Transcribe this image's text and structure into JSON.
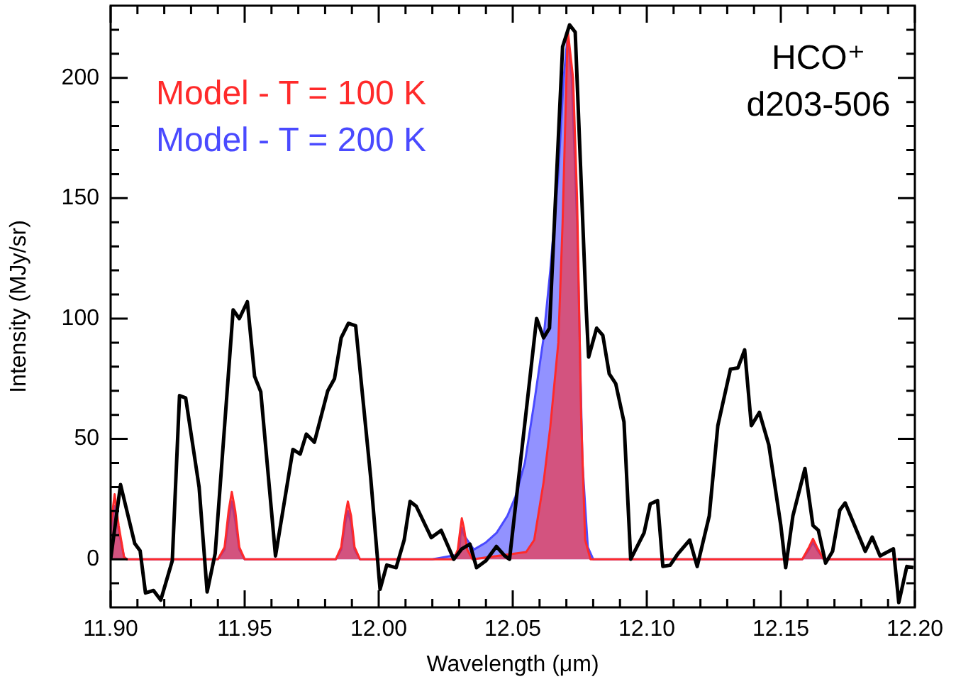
{
  "chart_data": {
    "type": "line",
    "xlabel": "Wavelength (μm)",
    "ylabel": "Intensity (MJy/sr)",
    "annotations": [
      "HCO⁺",
      "d203-506"
    ],
    "xlim": [
      11.9,
      12.2
    ],
    "xticks": [
      {
        "value": 11.9,
        "label": "11.90"
      },
      {
        "value": 11.91,
        "label": null
      },
      {
        "value": 11.92,
        "label": null
      },
      {
        "value": 11.93,
        "label": null
      },
      {
        "value": 11.94,
        "label": null
      },
      {
        "value": 11.95,
        "label": "11.95"
      },
      {
        "value": 11.96,
        "label": null
      },
      {
        "value": 11.97,
        "label": null
      },
      {
        "value": 11.98,
        "label": null
      },
      {
        "value": 11.99,
        "label": null
      },
      {
        "value": 12.0,
        "label": "12.00"
      },
      {
        "value": 12.01,
        "label": null
      },
      {
        "value": 12.02,
        "label": null
      },
      {
        "value": 12.03,
        "label": null
      },
      {
        "value": 12.04,
        "label": null
      },
      {
        "value": 12.05,
        "label": "12.05"
      },
      {
        "value": 12.06,
        "label": null
      },
      {
        "value": 12.07,
        "label": null
      },
      {
        "value": 12.08,
        "label": null
      },
      {
        "value": 12.09,
        "label": null
      },
      {
        "value": 12.1,
        "label": "12.10"
      },
      {
        "value": 12.11,
        "label": null
      },
      {
        "value": 12.12,
        "label": null
      },
      {
        "value": 12.13,
        "label": null
      },
      {
        "value": 12.14,
        "label": null
      },
      {
        "value": 12.15,
        "label": "12.15"
      },
      {
        "value": 12.16,
        "label": null
      },
      {
        "value": 12.17,
        "label": null
      },
      {
        "value": 12.18,
        "label": null
      },
      {
        "value": 12.19,
        "label": null
      },
      {
        "value": 12.2,
        "label": "12.20"
      }
    ],
    "ylim": [
      -20,
      230
    ],
    "yticks": [
      {
        "value": -10,
        "label": null
      },
      0,
      {
        "value": 10,
        "label": null
      },
      {
        "value": 20,
        "label": null
      },
      {
        "value": 30,
        "label": null
      },
      {
        "value": 40,
        "label": null
      },
      50,
      {
        "value": 60,
        "label": null
      },
      {
        "value": 70,
        "label": null
      },
      {
        "value": 80,
        "label": null
      },
      {
        "value": 90,
        "label": null
      },
      100,
      {
        "value": 110,
        "label": null
      },
      {
        "value": 120,
        "label": null
      },
      {
        "value": 130,
        "label": null
      },
      {
        "value": 140,
        "label": null
      },
      150,
      {
        "value": 160,
        "label": null
      },
      {
        "value": 170,
        "label": null
      },
      {
        "value": 180,
        "label": null
      },
      {
        "value": 190,
        "label": null
      },
      200,
      {
        "value": 210,
        "label": null
      },
      {
        "value": 220,
        "label": null
      }
    ],
    "grid": false,
    "legend": "top left",
    "marker": "none",
    "line_style": "solid",
    "series": [
      {
        "name": "Model - T = 100 K",
        "type": "area",
        "color": "#ff2a2a",
        "x": [
          11.9,
          11.9015,
          11.903,
          11.905,
          11.906,
          11.94,
          11.9425,
          11.944,
          11.9452,
          11.9465,
          11.948,
          11.95,
          11.984,
          11.986,
          11.9875,
          11.9885,
          11.9897,
          11.991,
          11.993,
          12.028,
          12.0295,
          12.0305,
          12.031,
          12.0318,
          12.033,
          12.035,
          12.055,
          12.058,
          12.0615,
          12.064,
          12.067,
          12.0686,
          12.0705,
          12.0725,
          12.074,
          12.0755,
          12.077,
          12.079,
          12.158,
          12.1605,
          12.162,
          12.1635,
          12.166,
          12.2
        ],
        "values": [
          14,
          27,
          14,
          1,
          0,
          0,
          5,
          20,
          28,
          20,
          5,
          0,
          0,
          5,
          18,
          24,
          18,
          5,
          0,
          0,
          4,
          13,
          17,
          13,
          4,
          0,
          3,
          8,
          32,
          55,
          90,
          140,
          220,
          200,
          150,
          60,
          8,
          0,
          0,
          5,
          8.5,
          5,
          0,
          0
        ]
      },
      {
        "name": "Model - T = 200 K",
        "type": "area",
        "color": "#4a4aff",
        "x": [
          11.9,
          11.9015,
          11.903,
          11.905,
          11.906,
          11.94,
          11.9425,
          11.944,
          11.9452,
          11.9465,
          11.948,
          11.95,
          11.984,
          11.986,
          11.9875,
          11.9885,
          11.9897,
          11.991,
          11.993,
          12.02,
          12.03,
          12.0305,
          12.031,
          12.0318,
          12.0355,
          12.04,
          12.044,
          12.048,
          12.051,
          12.0545,
          12.058,
          12.0615,
          12.064,
          12.067,
          12.069,
          12.0705,
          12.072,
          12.074,
          12.076,
          12.078,
          12.08,
          12.158,
          12.1605,
          12.162,
          12.1635,
          12.166,
          12.2
        ],
        "values": [
          12,
          22,
          12,
          1,
          0,
          0,
          4,
          16,
          24,
          16,
          4,
          0,
          0,
          4,
          15,
          20,
          15,
          4,
          0,
          0,
          2,
          10,
          13,
          10,
          4,
          7,
          11,
          18,
          26,
          40,
          65,
          92,
          120,
          160,
          200,
          218,
          200,
          140,
          40,
          5,
          0,
          0,
          4,
          7,
          4,
          0,
          0
        ]
      },
      {
        "type": "line",
        "color": "#000000",
        "x": [
          11.9,
          11.9037,
          11.909,
          11.911,
          11.913,
          11.916,
          11.9187,
          11.923,
          11.9257,
          11.928,
          11.933,
          11.936,
          11.939,
          11.9457,
          11.948,
          11.951,
          11.9537,
          11.956,
          11.9615,
          11.968,
          11.9707,
          11.973,
          11.976,
          11.981,
          11.9835,
          11.986,
          11.9887,
          11.9914,
          11.997,
          12.0005,
          12.003,
          12.0065,
          12.0095,
          12.0117,
          12.014,
          12.0196,
          12.0233,
          12.028,
          12.031,
          12.034,
          12.0365,
          12.04,
          12.0439,
          12.047,
          12.0488,
          12.0589,
          12.0615,
          12.0637,
          12.0686,
          12.0712,
          12.0733,
          12.0774,
          12.0783,
          12.0813,
          12.0836,
          12.086,
          12.0884,
          12.0915,
          12.094,
          12.099,
          12.1013,
          12.104,
          12.106,
          12.1087,
          12.1117,
          12.116,
          12.1188,
          12.1233,
          12.1265,
          12.1312,
          12.134,
          12.1365,
          12.139,
          12.142,
          12.1455,
          12.15,
          12.1518,
          12.1545,
          12.159,
          12.162,
          12.164,
          12.1667,
          12.1693,
          12.172,
          12.174,
          12.1815,
          12.1841,
          12.187,
          12.192,
          12.194,
          12.197,
          12.1995
        ],
        "values": [
          0,
          31,
          6.5,
          3.5,
          -14,
          -13,
          -17,
          -0.6,
          68,
          67,
          30,
          -13.6,
          2.4,
          103.6,
          100,
          107,
          76,
          69.6,
          1.4,
          45.6,
          43.7,
          52,
          48.6,
          70,
          75,
          92,
          98,
          97,
          34,
          -12.5,
          -2.4,
          -3.5,
          8,
          24,
          22,
          9,
          12,
          0,
          4.3,
          6.3,
          -3.5,
          -0.6,
          5.3,
          1.4,
          0,
          100,
          92,
          96,
          213,
          222,
          219,
          104,
          84,
          96,
          93,
          77,
          73,
          57,
          0,
          11,
          23,
          24.4,
          -3,
          -2.5,
          2.4,
          8,
          -3,
          18,
          55.5,
          79,
          79.5,
          87,
          55.5,
          61,
          47.6,
          14,
          -3.5,
          18,
          37.7,
          14,
          12,
          -1.6,
          3.3,
          20.4,
          23.4,
          3.3,
          9.2,
          1.4,
          4.3,
          -18,
          -3,
          -3.5
        ]
      }
    ]
  }
}
